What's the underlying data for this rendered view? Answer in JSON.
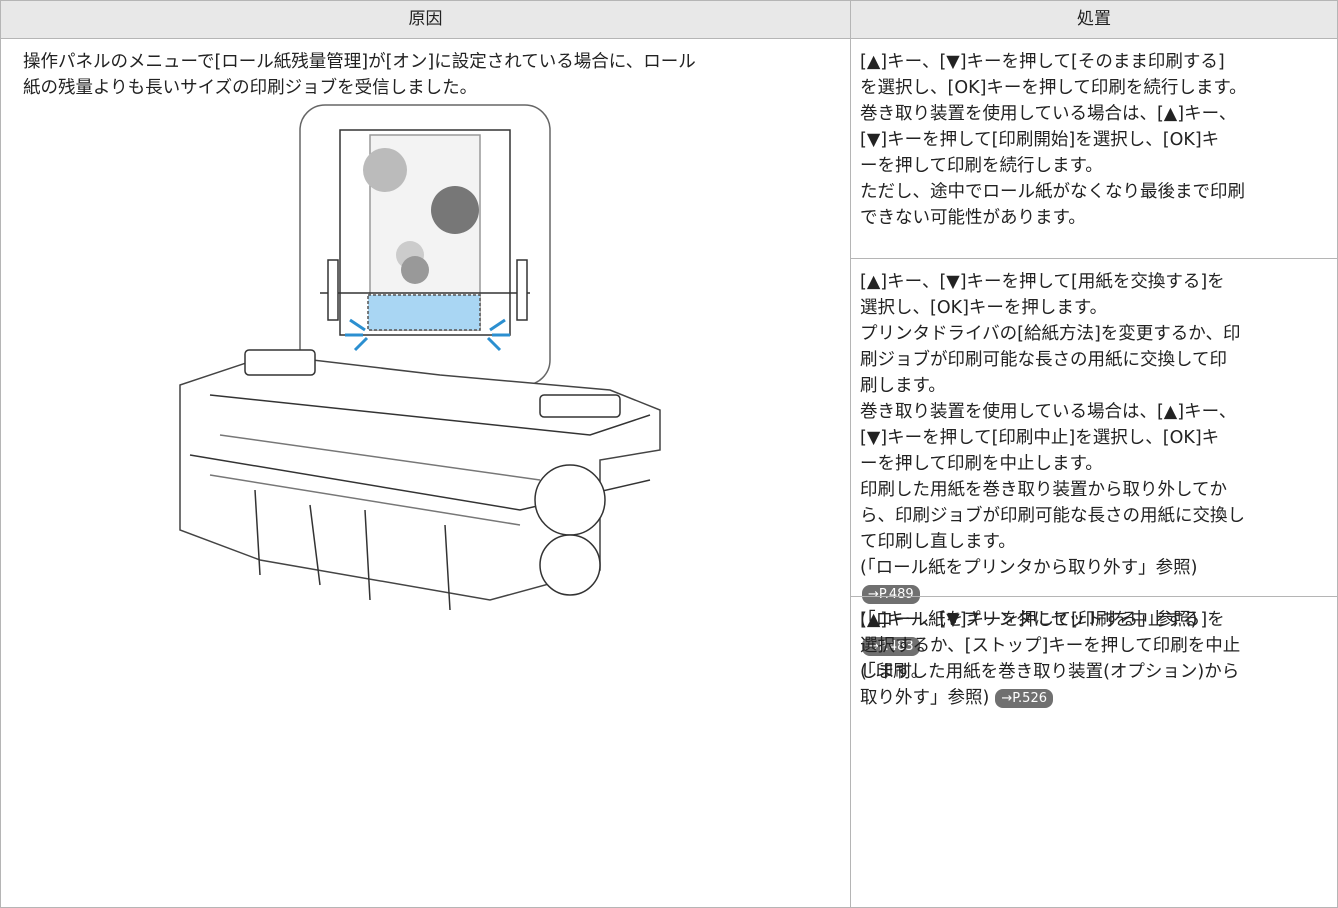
{
  "table": {
    "headers": [
      "原因",
      "処置"
    ],
    "cause": {
      "lines": [
        "操作パネルのメニューで[ロール紙残量管理]が[オン]に設定されている場合に、ロール",
        "紙の残量よりも長いサイズの印刷ジョブを受信しました。"
      ]
    },
    "actions": [
      {
        "lines": [
          "[▲]キー、[▼]キーを押して[そのまま印刷する]",
          "を選択し、[OK]キーを押して印刷を続行します。",
          "巻き取り装置を使用している場合は、[▲]キー、",
          "[▼]キーを押して[印刷開始]を選択し、[OK]キ",
          "ーを押して印刷を続行します。",
          "ただし、途中でロール紙がなくなり最後まで印刷",
          "できない可能性があります。"
        ]
      },
      {
        "lines": [
          "[▲]キー、[▼]キーを押して[用紙を交換する]を",
          "選択し、[OK]キーを押します。",
          "プリンタドライバの[給紙方法]を変更するか、印",
          "刷ジョブが印刷可能な長さの用紙に交換して印",
          "刷します。",
          "巻き取り装置を使用している場合は、[▲]キー、",
          "[▼]キーを押して[印刷中止]を選択し、[OK]キ",
          "ーを押して印刷を中止します。",
          "印刷した用紙を巻き取り装置から取り外してか",
          "ら、印刷ジョブが印刷可能な長さの用紙に交換し",
          "て印刷し直します。",
          "(「ロール紙をプリンタから取り外す」参照)",
          {
            "link": "→P.489"
          },
          "(「ロール紙をプリンタにセットする」参照)",
          {
            "link": "→P.483"
          },
          "(「印刷した用紙を巻き取り装置(オプション)から",
          {
            "text": "取り外す」参照)",
            "link": "→P.526"
          }
        ]
      },
      {
        "lines": [
          "[▲]キー、[▼]キーを押して[印刷を中止する]を",
          "選択するか、[ストップ]キーを押して印刷を中止",
          "します。"
        ]
      }
    ]
  }
}
